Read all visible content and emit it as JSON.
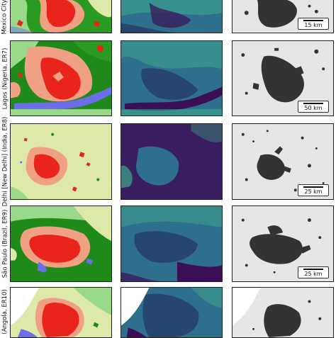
{
  "figure": {
    "rows": [
      {
        "label": "Mexico City",
        "scale": "15 km"
      },
      {
        "label": "Lagos (Nigeria, ER7)",
        "scale": "50 km"
      },
      {
        "label": "Delhi [New Delhi] (India, ER8)",
        "scale": "25 km"
      },
      {
        "label": "São Paulo (Brazil, ER9)",
        "scale": "25 km"
      },
      {
        "label": "(Angola, ER10)",
        "scale": ""
      }
    ],
    "column_types": [
      "land-cover-map",
      "index-map",
      "built-up-mask"
    ],
    "colors": {
      "urban": "#e8241c",
      "periurban": "#f0a183",
      "forest": "#1f8a1a",
      "grassland": "#9ad88a",
      "cropland": "#dde9a8",
      "water": "#6b6ee8",
      "index_low": "#3b0f55",
      "index_mid": "#2f6f8e",
      "index_high": "#3fa88a",
      "mask_bg": "#e6e6e6",
      "mask_fg": "#333333"
    }
  }
}
